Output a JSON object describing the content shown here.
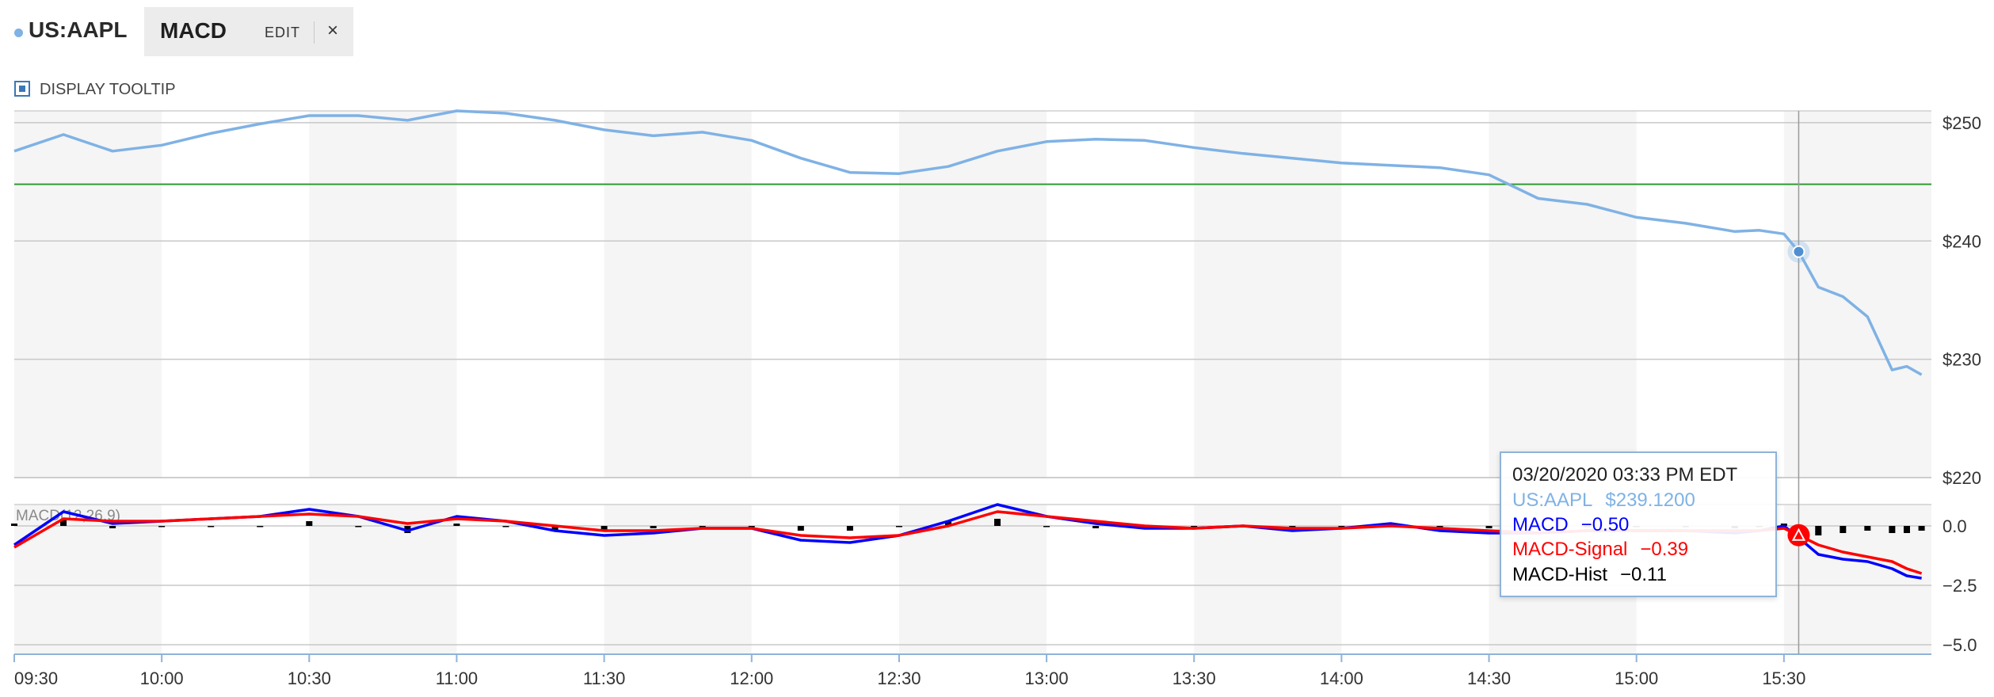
{
  "header": {
    "symbol": "US:AAPL",
    "indicator_tab": {
      "label": "MACD",
      "edit_label": "EDIT",
      "close_label": "×"
    }
  },
  "controls": {
    "display_tooltip_label": "DISPLAY TOOLTIP",
    "display_tooltip_checked": true
  },
  "colors": {
    "price": "#7fb2e5",
    "macd": "#0000ff",
    "signal": "#ff0000",
    "hist": "#000000",
    "reference_line": "#2e9b2e",
    "band": "#f5f5f5"
  },
  "tooltip": {
    "datetime": "03/20/2020 03:33 PM EDT",
    "price_label": "US:AAPL",
    "price_value": "$239.1200",
    "macd_label": "MACD",
    "macd_value": "−0.50",
    "signal_label": "MACD-Signal",
    "signal_value": "−0.39",
    "hist_label": "MACD-Hist",
    "hist_value": "−0.11"
  },
  "chart_data": [
    {
      "type": "line",
      "title": "",
      "series": [
        {
          "name": "US:AAPL",
          "x": [
            "09:30",
            "09:40",
            "09:50",
            "10:00",
            "10:10",
            "10:20",
            "10:30",
            "10:40",
            "10:50",
            "11:00",
            "11:10",
            "11:20",
            "11:30",
            "11:40",
            "11:50",
            "12:00",
            "12:10",
            "12:20",
            "12:30",
            "12:40",
            "12:50",
            "13:00",
            "13:10",
            "13:20",
            "13:30",
            "13:40",
            "13:50",
            "14:00",
            "14:10",
            "14:20",
            "14:30",
            "14:40",
            "14:50",
            "15:00",
            "15:10",
            "15:20",
            "15:25",
            "15:30",
            "15:33",
            "15:37",
            "15:42",
            "15:47",
            "15:52",
            "15:55",
            "15:58"
          ],
          "values": [
            247.6,
            249.0,
            247.6,
            248.1,
            249.1,
            249.9,
            250.6,
            250.6,
            250.2,
            251.0,
            250.8,
            250.2,
            249.4,
            248.9,
            249.2,
            248.5,
            247.0,
            245.8,
            245.7,
            246.3,
            247.6,
            248.4,
            248.6,
            248.5,
            247.9,
            247.4,
            247.0,
            246.6,
            246.4,
            246.2,
            245.6,
            243.6,
            243.1,
            242.0,
            241.5,
            240.8,
            240.9,
            240.6,
            239.1,
            236.1,
            235.3,
            233.6,
            229.1,
            229.4,
            228.7
          ]
        }
      ],
      "ylim": [
        220,
        251
      ],
      "y_ticks": [
        "$250",
        "$240",
        "$230",
        "$220"
      ],
      "reference_line": 244.8,
      "grid": true
    },
    {
      "type": "line",
      "title": "MACD(12,26,9)",
      "series": [
        {
          "name": "MACD",
          "x": [
            "09:30",
            "09:40",
            "09:50",
            "10:00",
            "10:10",
            "10:20",
            "10:30",
            "10:40",
            "10:50",
            "11:00",
            "11:10",
            "11:20",
            "11:30",
            "11:40",
            "11:50",
            "12:00",
            "12:10",
            "12:20",
            "12:30",
            "12:40",
            "12:50",
            "13:00",
            "13:10",
            "13:20",
            "13:30",
            "13:40",
            "13:50",
            "14:00",
            "14:10",
            "14:20",
            "14:30",
            "14:40",
            "14:50",
            "15:00",
            "15:10",
            "15:20",
            "15:25",
            "15:30",
            "15:33",
            "15:37",
            "15:42",
            "15:47",
            "15:52",
            "15:55",
            "15:58"
          ],
          "values": [
            -0.8,
            0.6,
            0.1,
            0.2,
            0.3,
            0.4,
            0.7,
            0.4,
            -0.2,
            0.4,
            0.2,
            -0.2,
            -0.4,
            -0.3,
            -0.1,
            -0.1,
            -0.6,
            -0.7,
            -0.4,
            0.2,
            0.9,
            0.4,
            0.1,
            -0.1,
            -0.1,
            0.0,
            -0.2,
            -0.1,
            0.1,
            -0.2,
            -0.3,
            -0.3,
            -0.2,
            -0.2,
            -0.2,
            -0.3,
            -0.2,
            0.0,
            -0.5,
            -1.2,
            -1.4,
            -1.5,
            -1.8,
            -2.1,
            -2.2
          ]
        },
        {
          "name": "MACD-Signal",
          "x": [
            "09:30",
            "09:40",
            "09:50",
            "10:00",
            "10:10",
            "10:20",
            "10:30",
            "10:40",
            "10:50",
            "11:00",
            "11:10",
            "11:20",
            "11:30",
            "11:40",
            "11:50",
            "12:00",
            "12:10",
            "12:20",
            "12:30",
            "12:40",
            "12:50",
            "13:00",
            "13:10",
            "13:20",
            "13:30",
            "13:40",
            "13:50",
            "14:00",
            "14:10",
            "14:20",
            "14:30",
            "14:40",
            "14:50",
            "15:00",
            "15:10",
            "15:20",
            "15:25",
            "15:30",
            "15:33",
            "15:37",
            "15:42",
            "15:47",
            "15:52",
            "15:55",
            "15:58"
          ],
          "values": [
            -0.9,
            0.3,
            0.2,
            0.2,
            0.3,
            0.4,
            0.5,
            0.4,
            0.1,
            0.3,
            0.2,
            0.0,
            -0.2,
            -0.2,
            -0.1,
            -0.1,
            -0.4,
            -0.5,
            -0.4,
            0.0,
            0.6,
            0.4,
            0.2,
            0.0,
            -0.1,
            0.0,
            -0.1,
            -0.1,
            0.0,
            -0.1,
            -0.2,
            -0.3,
            -0.2,
            -0.2,
            -0.2,
            -0.2,
            -0.2,
            -0.1,
            -0.39,
            -0.8,
            -1.1,
            -1.3,
            -1.5,
            -1.8,
            -2.0
          ]
        },
        {
          "name": "MACD-Hist",
          "x": [
            "09:30",
            "09:40",
            "09:50",
            "10:00",
            "10:10",
            "10:20",
            "10:30",
            "10:40",
            "10:50",
            "11:00",
            "11:10",
            "11:20",
            "11:30",
            "11:40",
            "11:50",
            "12:00",
            "12:10",
            "12:20",
            "12:30",
            "12:40",
            "12:50",
            "13:00",
            "13:10",
            "13:20",
            "13:30",
            "13:40",
            "13:50",
            "14:00",
            "14:10",
            "14:20",
            "14:30",
            "14:40",
            "14:50",
            "15:00",
            "15:10",
            "15:20",
            "15:25",
            "15:30",
            "15:33",
            "15:37",
            "15:42",
            "15:47",
            "15:52",
            "15:55",
            "15:58"
          ],
          "values": [
            0.1,
            0.3,
            -0.1,
            0.0,
            0.0,
            0.0,
            0.2,
            0.0,
            -0.3,
            0.1,
            0.0,
            -0.2,
            -0.2,
            -0.1,
            0.0,
            0.0,
            -0.2,
            -0.2,
            0.0,
            0.2,
            0.3,
            0.0,
            -0.1,
            -0.1,
            0.0,
            0.0,
            -0.1,
            0.0,
            0.1,
            -0.1,
            -0.1,
            0.0,
            0.0,
            0.0,
            0.0,
            -0.1,
            0.0,
            0.1,
            -0.11,
            -0.4,
            -0.3,
            -0.2,
            -0.3,
            -0.3,
            -0.2
          ]
        }
      ],
      "ylim": [
        -5.4,
        0.9
      ],
      "y_ticks": [
        "0.0",
        "−2.5",
        "−5.0"
      ],
      "grid": true
    }
  ],
  "x_axis": {
    "ticks": [
      "09:30",
      "10:00",
      "10:30",
      "11:00",
      "11:30",
      "12:00",
      "12:30",
      "13:00",
      "13:30",
      "14:00",
      "14:30",
      "15:00",
      "15:30"
    ],
    "crosshair": "15:33"
  }
}
